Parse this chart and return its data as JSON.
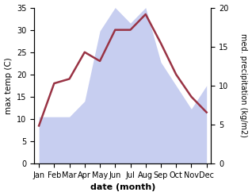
{
  "months": [
    "Jan",
    "Feb",
    "Mar",
    "Apr",
    "May",
    "Jun",
    "Jul",
    "Aug",
    "Sep",
    "Oct",
    "Nov",
    "Dec"
  ],
  "temperature": [
    8.5,
    18.0,
    19.0,
    25.0,
    23.0,
    30.0,
    30.0,
    33.5,
    27.0,
    20.0,
    15.0,
    11.5
  ],
  "precipitation_kg": [
    6,
    6,
    6,
    8,
    17,
    20,
    18,
    20,
    13,
    10,
    7,
    10
  ],
  "temp_ylim": [
    0,
    35
  ],
  "precip_ylim": [
    0,
    20
  ],
  "temp_color": "#993344",
  "precip_color": "#aab4e8",
  "precip_fill_alpha": 0.65,
  "xlabel": "date (month)",
  "ylabel_left": "max temp (C)",
  "ylabel_right": "med. precipitation (kg/m2)",
  "bg_color": "#ffffff"
}
